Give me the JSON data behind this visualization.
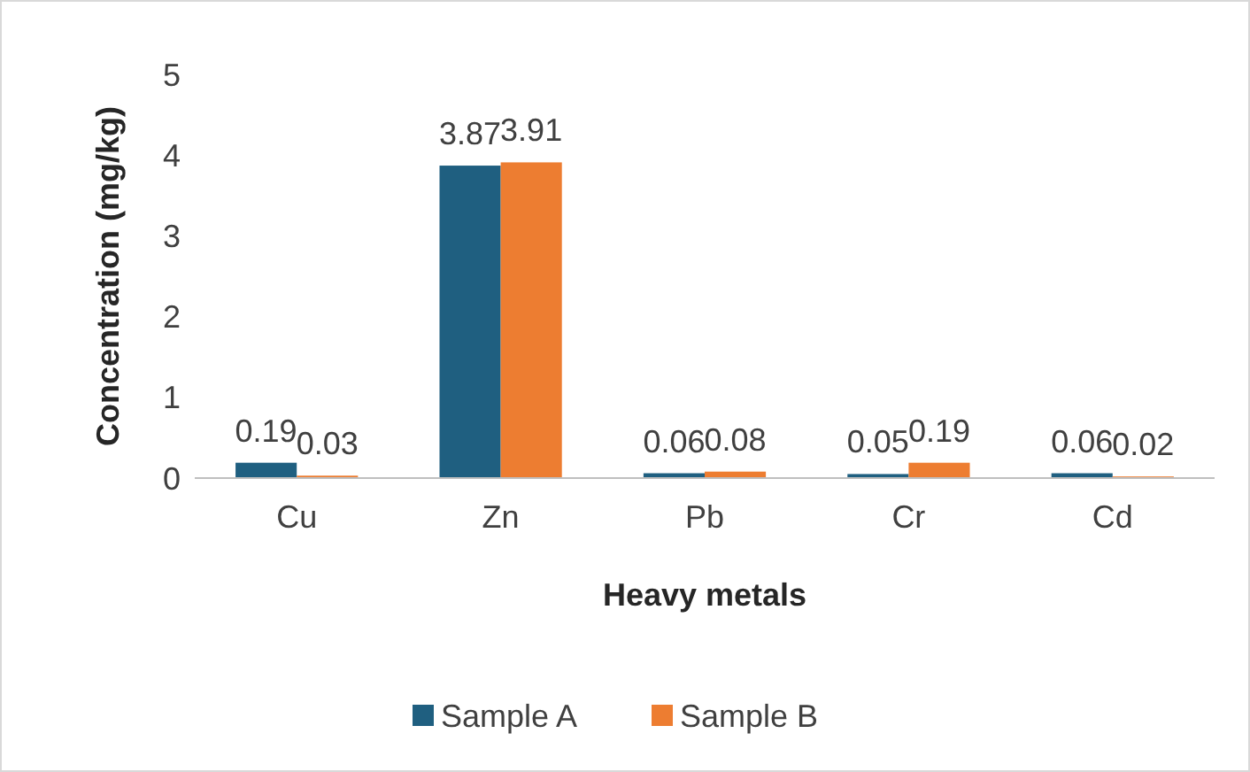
{
  "chart_data": {
    "type": "bar",
    "xlabel": "Heavy metals",
    "ylabel": "Concentration (mg/kg)",
    "categories": [
      "Cu",
      "Zn",
      "Pb",
      "Cr",
      "Cd"
    ],
    "series": [
      {
        "name": "Sample A",
        "color": "#1f5f80",
        "values": [
          0.19,
          3.87,
          0.06,
          0.05,
          0.06
        ]
      },
      {
        "name": "Sample B",
        "color": "#ed7d31",
        "values": [
          0.03,
          3.91,
          0.08,
          0.19,
          0.02
        ]
      }
    ],
    "ylim": [
      0,
      5
    ],
    "yticks": [
      0,
      1,
      2,
      3,
      4,
      5
    ],
    "grid": false,
    "legend": "bottom",
    "data_labels": true
  }
}
